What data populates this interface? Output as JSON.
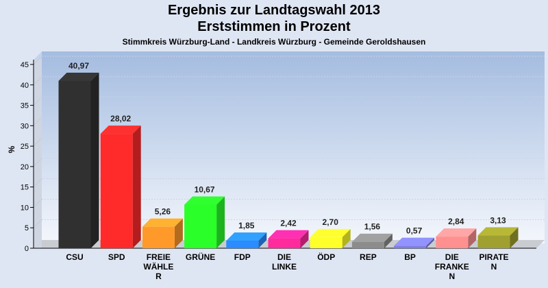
{
  "chart_data": {
    "type": "bar",
    "title": "Ergebnis zur Landtagswahl 2013",
    "subtitle": "Erststimmen in Prozent",
    "caption": "Stimmkreis Würzburg-Land - Landkreis Würzburg - Gemeinde Geroldshausen",
    "ylabel": "%",
    "ylim": [
      0,
      45
    ],
    "yticks": [
      0,
      5,
      10,
      15,
      20,
      25,
      30,
      35,
      40,
      45
    ],
    "grid": true,
    "categories": [
      [
        "CSU"
      ],
      [
        "SPD"
      ],
      [
        "FREIE",
        "WÄHLE",
        "R"
      ],
      [
        "GRÜNE"
      ],
      [
        "FDP"
      ],
      [
        "DIE",
        "LINKE"
      ],
      [
        "ÖDP"
      ],
      [
        "REP"
      ],
      [
        "BP"
      ],
      [
        "DIE",
        "FRANKE",
        "N"
      ],
      [
        "PIRATE",
        "N"
      ]
    ],
    "values": [
      40.97,
      28.02,
      5.26,
      10.67,
      1.85,
      2.42,
      2.7,
      1.56,
      0.57,
      2.84,
      3.13
    ],
    "value_labels": [
      "40,97",
      "28,02",
      "5,26",
      "10,67",
      "1,85",
      "2,42",
      "2,70",
      "1,56",
      "0,57",
      "2,84",
      "3,13"
    ],
    "colors": [
      "#303030",
      "#ff2a2a",
      "#ff9a2a",
      "#2aff2a",
      "#2a8cff",
      "#ff2a9c",
      "#ffff2a",
      "#8c8c8c",
      "#8080e0",
      "#ff9090",
      "#a0a030"
    ]
  }
}
